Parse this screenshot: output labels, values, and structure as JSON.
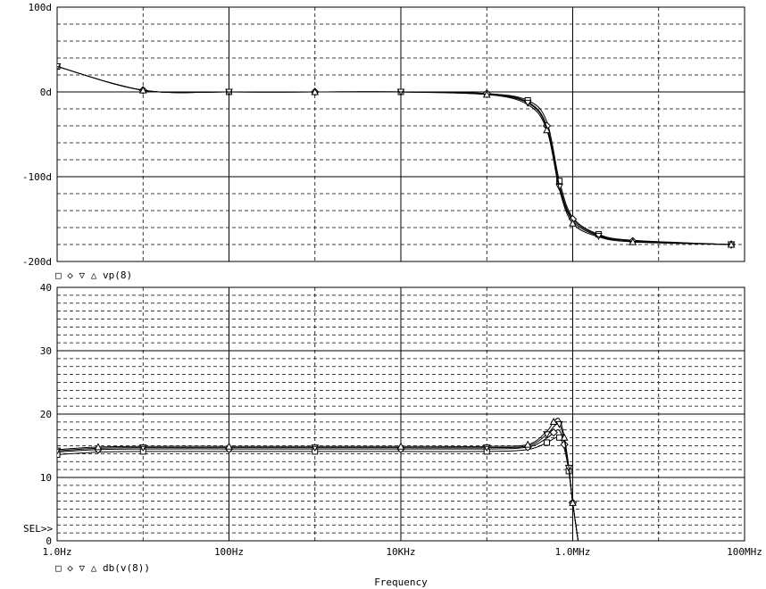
{
  "chart_data": [
    {
      "type": "line",
      "x_scale": "log",
      "xlim": [
        1,
        100000000
      ],
      "ylim": [
        -200,
        100
      ],
      "y_ticks": [
        100,
        0,
        -100,
        -200
      ],
      "y_tick_labels": [
        "100d",
        "0d",
        "-100d",
        "-200d"
      ],
      "grid": true,
      "legend": {
        "symbols": [
          "□",
          "◇",
          "▽",
          "△"
        ],
        "label": "vp(8)"
      },
      "series": [
        {
          "marker": "square",
          "x": [
            1,
            10,
            100,
            1000,
            10000,
            100000,
            300000,
            500000,
            700000,
            1000000,
            2000000,
            5000000,
            70000000
          ],
          "y": [
            30,
            2,
            0,
            0,
            0,
            -2,
            -10,
            -35,
            -105,
            -148,
            -168,
            -175,
            -180
          ]
        },
        {
          "marker": "diamond",
          "x": [
            1,
            10,
            100,
            1000,
            10000,
            100000,
            300000,
            500000,
            700000,
            1000000,
            2000000,
            5000000,
            70000000
          ],
          "y": [
            30,
            2,
            0,
            0,
            0,
            -2,
            -12,
            -40,
            -110,
            -150,
            -169,
            -176,
            -180
          ]
        },
        {
          "marker": "triangle-down",
          "x": [
            1,
            10,
            100,
            1000,
            10000,
            100000,
            300000,
            500000,
            700000,
            1000000,
            2000000,
            5000000,
            70000000
          ],
          "y": [
            30,
            2,
            0,
            0,
            0,
            -3,
            -13,
            -42,
            -112,
            -152,
            -170,
            -176,
            -180
          ]
        },
        {
          "marker": "triangle-up",
          "x": [
            1,
            10,
            100,
            1000,
            10000,
            100000,
            300000,
            500000,
            700000,
            1000000,
            2000000,
            5000000,
            70000000
          ],
          "y": [
            30,
            2,
            0,
            0,
            0,
            -3,
            -15,
            -45,
            -115,
            -155,
            -171,
            -177,
            -180
          ]
        }
      ]
    },
    {
      "type": "line",
      "x_scale": "log",
      "xlim": [
        1,
        100000000
      ],
      "ylim": [
        0,
        40
      ],
      "y_ticks": [
        0,
        10,
        20,
        30,
        40
      ],
      "y_tick_labels": [
        "0",
        "10",
        "20",
        "30",
        "40"
      ],
      "x_ticks": [
        1,
        100,
        10000,
        1000000,
        100000000
      ],
      "x_tick_labels": [
        "1.0Hz",
        "100Hz",
        "10KHz",
        "1.0MHz",
        "100MHz"
      ],
      "xlabel": "Frequency",
      "grid": true,
      "legend": {
        "symbols": [
          "□",
          "◇",
          "▽",
          "△"
        ],
        "label": "db(v(8))"
      },
      "cursor_label": "SEL>>",
      "series": [
        {
          "marker": "square",
          "x": [
            1,
            3,
            10,
            100,
            1000,
            10000,
            100000,
            300000,
            500000,
            600000,
            700000,
            800000,
            900000,
            1000000,
            1200000
          ],
          "y": [
            13.6,
            14.0,
            14.1,
            14.1,
            14.1,
            14.1,
            14.1,
            14.4,
            15.5,
            16.1,
            16.3,
            14.5,
            11.0,
            6.0,
            -1.5
          ]
        },
        {
          "marker": "diamond",
          "x": [
            1,
            3,
            10,
            100,
            1000,
            10000,
            100000,
            300000,
            500000,
            600000,
            700000,
            800000,
            900000,
            1000000,
            1200000
          ],
          "y": [
            14.0,
            14.4,
            14.5,
            14.5,
            14.5,
            14.5,
            14.5,
            14.8,
            16.2,
            17.1,
            17.4,
            15.2,
            11.3,
            6.0,
            -1.5
          ]
        },
        {
          "marker": "triangle-down",
          "x": [
            1,
            3,
            10,
            100,
            1000,
            10000,
            100000,
            300000,
            500000,
            600000,
            700000,
            800000,
            900000,
            1000000,
            1200000
          ],
          "y": [
            14.2,
            14.6,
            14.7,
            14.7,
            14.7,
            14.7,
            14.7,
            15.0,
            16.8,
            18.0,
            18.4,
            15.8,
            11.5,
            6.0,
            -1.5
          ]
        },
        {
          "marker": "triangle-up",
          "x": [
            1,
            3,
            10,
            100,
            1000,
            10000,
            100000,
            300000,
            500000,
            600000,
            700000,
            800000,
            900000,
            1000000,
            1200000
          ],
          "y": [
            14.4,
            14.8,
            14.9,
            14.9,
            14.9,
            14.9,
            14.9,
            15.2,
            17.3,
            18.8,
            19.2,
            16.3,
            11.7,
            6.0,
            -1.5
          ]
        }
      ]
    }
  ]
}
